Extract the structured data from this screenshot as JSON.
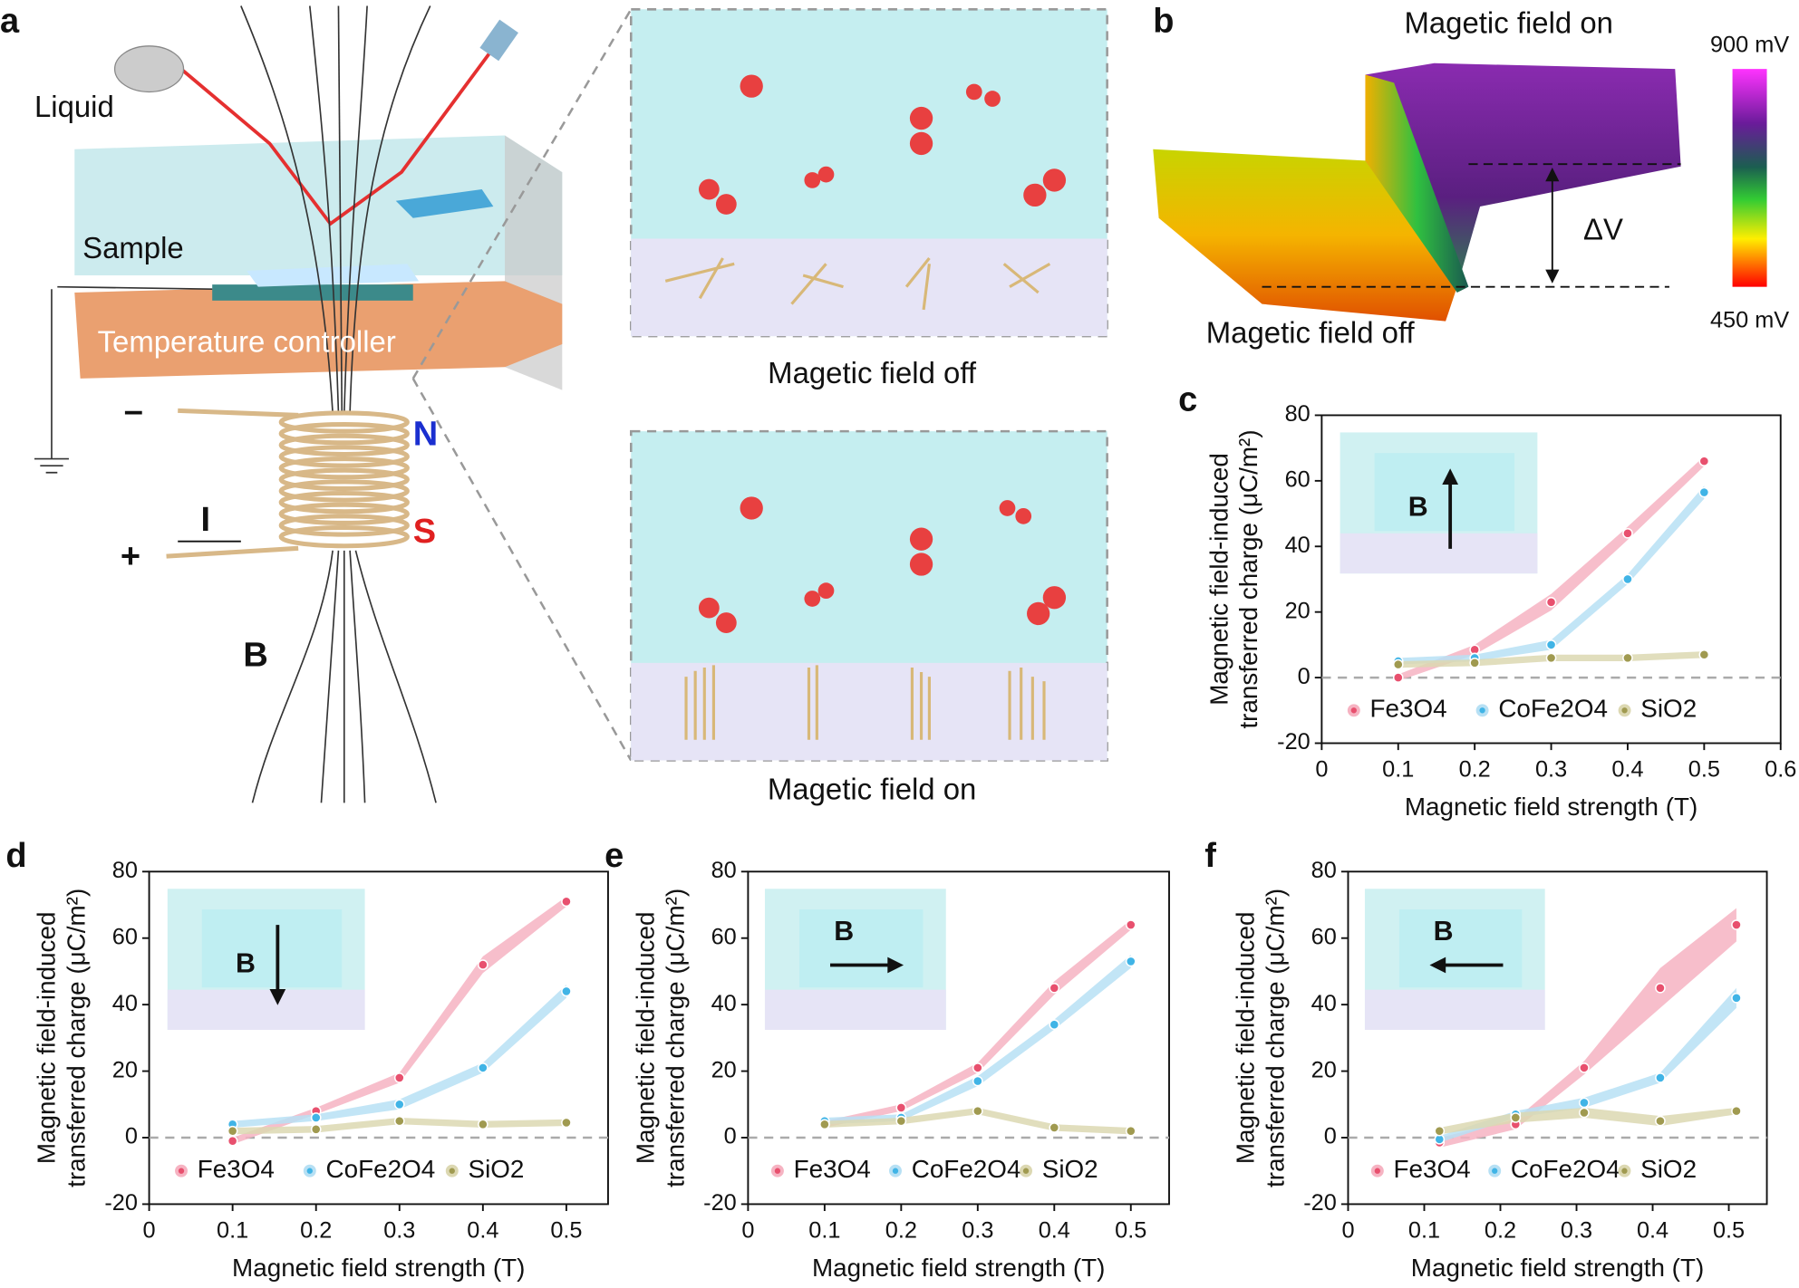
{
  "figure": {
    "panel_labels": [
      "a",
      "b"
    ],
    "a": {
      "liquid": "Liquid",
      "sample": "Sample",
      "controller": "Temperature controller",
      "minus": "–",
      "plus": "+",
      "north": "N",
      "south": "S",
      "current": "I",
      "field": "B",
      "zoom_off": "Magetic field off",
      "zoom_on": "Magetic field on"
    },
    "b": {
      "on": "Magetic field on",
      "off": "Magetic field off",
      "delta": "ΔV",
      "scale_max": "900 mV",
      "scale_min": "450 mV"
    }
  },
  "chart_data": [
    {
      "type": "line",
      "panel": "c",
      "ylabel": [
        "Magnetic field-induced",
        "transferred charge (μC/m²)"
      ],
      "xlabel": "Magnetic field strength (T)",
      "x": [
        0.1,
        0.2,
        0.3,
        0.4,
        0.5
      ],
      "xlim": [
        0,
        0.6
      ],
      "xticks": [
        0,
        0.1,
        0.2,
        0.3,
        0.4,
        0.5,
        0.6
      ],
      "ylim": [
        -20,
        80
      ],
      "yticks": [
        -20,
        0,
        20,
        40,
        60,
        80
      ],
      "zero_line": true,
      "inset_label": "B",
      "inset_arrow": "up",
      "series": [
        {
          "name": "Fe3O4",
          "color": "#e8506e",
          "band_color": "#f6b3c2",
          "values": [
            0,
            8.5,
            23,
            44,
            66
          ],
          "errors": [
            1,
            1.5,
            2.5,
            2,
            1.5
          ]
        },
        {
          "name": "CoFe2O4",
          "color": "#40b4e6",
          "band_color": "#b7e0f4",
          "values": [
            5,
            6,
            10,
            30,
            56.5
          ],
          "errors": [
            1,
            1,
            1.5,
            1.5,
            2
          ]
        },
        {
          "name": "SiO2",
          "color": "#a09a50",
          "band_color": "#dcd8b2",
          "values": [
            4,
            4.5,
            6,
            6,
            7
          ],
          "errors": [
            1,
            1,
            1,
            1,
            1
          ]
        }
      ]
    },
    {
      "type": "line",
      "panel": "d",
      "ylabel": [
        "Magnetic field-induced",
        "transferred charge (μC/m²)"
      ],
      "xlabel": "Magnetic field strength (T)",
      "x": [
        0.1,
        0.2,
        0.3,
        0.4,
        0.5
      ],
      "xlim": [
        0,
        0.55
      ],
      "xticks": [
        0,
        0.1,
        0.2,
        0.3,
        0.4,
        0.5
      ],
      "ylim": [
        -20,
        80
      ],
      "yticks": [
        -20,
        0,
        20,
        40,
        60,
        80
      ],
      "zero_line": true,
      "inset_label": "B",
      "inset_arrow": "down",
      "series": [
        {
          "name": "Fe3O4",
          "color": "#e8506e",
          "band_color": "#f6b3c2",
          "values": [
            -1,
            8,
            18,
            52,
            71
          ],
          "errors": [
            1,
            1,
            1.5,
            2.5,
            1.5
          ]
        },
        {
          "name": "CoFe2O4",
          "color": "#40b4e6",
          "band_color": "#b7e0f4",
          "values": [
            4,
            6,
            10,
            21,
            44
          ],
          "errors": [
            1,
            1,
            1.5,
            1.5,
            2
          ]
        },
        {
          "name": "SiO2",
          "color": "#a09a50",
          "band_color": "#dcd8b2",
          "values": [
            2,
            2.5,
            5,
            4,
            4.5
          ],
          "errors": [
            1,
            1,
            1,
            1,
            1
          ]
        }
      ]
    },
    {
      "type": "line",
      "panel": "e",
      "ylabel": [
        "Magnetic field-induced",
        "transferred charge (μC/m²)"
      ],
      "xlabel": "Magnetic field strength (T)",
      "x": [
        0.1,
        0.2,
        0.3,
        0.4,
        0.5
      ],
      "xlim": [
        0,
        0.55
      ],
      "xticks": [
        0,
        0.1,
        0.2,
        0.3,
        0.4,
        0.5
      ],
      "ylim": [
        -20,
        80
      ],
      "yticks": [
        -20,
        0,
        20,
        40,
        60,
        80
      ],
      "zero_line": true,
      "inset_label": "B",
      "inset_arrow": "right",
      "series": [
        {
          "name": "Fe3O4",
          "color": "#e8506e",
          "band_color": "#f6b3c2",
          "values": [
            4,
            9,
            21,
            45,
            64
          ],
          "errors": [
            1,
            1,
            1.5,
            2,
            1.5
          ]
        },
        {
          "name": "CoFe2O4",
          "color": "#40b4e6",
          "band_color": "#b7e0f4",
          "values": [
            5,
            6,
            17,
            34,
            53
          ],
          "errors": [
            1,
            1,
            1.5,
            1.5,
            2
          ]
        },
        {
          "name": "SiO2",
          "color": "#a09a50",
          "band_color": "#dcd8b2",
          "values": [
            4,
            5,
            8,
            3,
            2
          ],
          "errors": [
            1,
            1,
            1,
            1,
            1
          ]
        }
      ]
    },
    {
      "type": "line",
      "panel": "f",
      "ylabel": [
        "Magnetic field-induced",
        "transferred charge (μC/m²)"
      ],
      "xlabel": "Magnetic field strength (T)",
      "x": [
        0.12,
        0.22,
        0.31,
        0.41,
        0.51
      ],
      "xlim": [
        0,
        0.55
      ],
      "xticks": [
        0,
        0.1,
        0.2,
        0.3,
        0.4,
        0.5
      ],
      "ylim": [
        -20,
        80
      ],
      "yticks": [
        -20,
        0,
        20,
        40,
        60,
        80
      ],
      "zero_line": true,
      "inset_label": "B",
      "inset_arrow": "left",
      "series": [
        {
          "name": "Fe3O4",
          "color": "#e8506e",
          "band_color": "#f6b3c2",
          "values": [
            -1.5,
            4,
            21,
            45,
            64
          ],
          "errors": [
            1.5,
            1.5,
            2,
            6,
            5
          ]
        },
        {
          "name": "CoFe2O4",
          "color": "#40b4e6",
          "band_color": "#b7e0f4",
          "values": [
            -0.5,
            7,
            10.5,
            18,
            42
          ],
          "errors": [
            1,
            1,
            1.5,
            1.5,
            3
          ]
        },
        {
          "name": "SiO2",
          "color": "#a09a50",
          "band_color": "#dcd8b2",
          "values": [
            2,
            6,
            7.5,
            5,
            8
          ],
          "errors": [
            1,
            1.5,
            1.5,
            1.5,
            1
          ]
        }
      ]
    }
  ]
}
